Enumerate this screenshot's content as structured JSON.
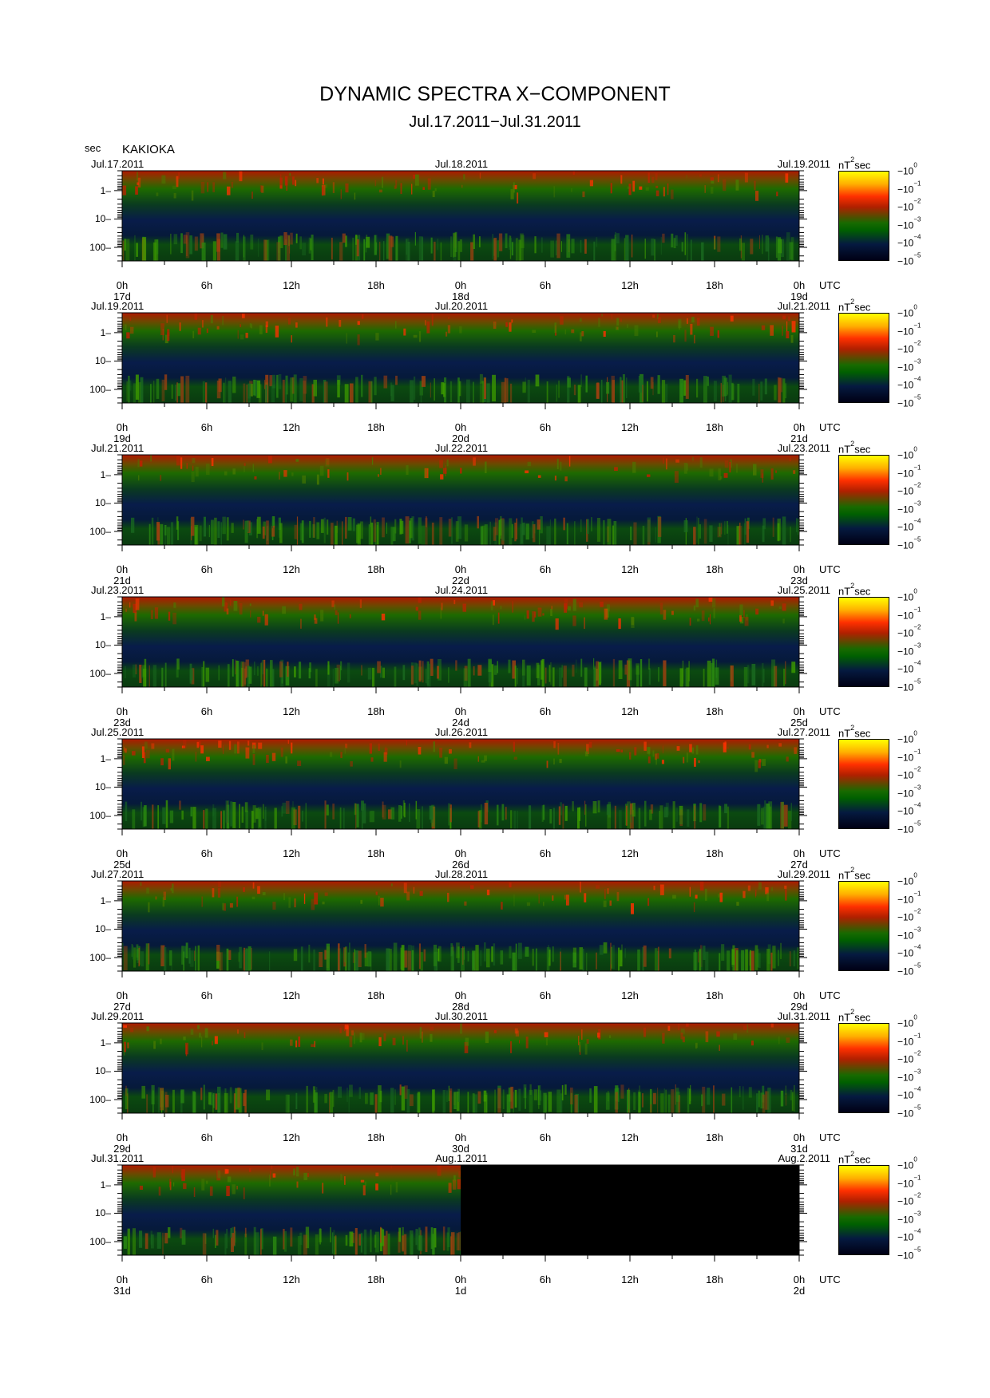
{
  "title": "DYNAMIC SPECTRA X−COMPONENT",
  "subtitle": "Jul.17.2011−Jul.31.2011",
  "y_unit_label": "sec",
  "station": "KAKIOKA",
  "colorbar": {
    "unit": "nT",
    "unit_exp": "2",
    "unit_suffix": "sec",
    "labels": [
      "−10",
      "−10",
      "−10",
      "−10",
      "−10",
      "−10"
    ],
    "exponents": [
      "0",
      "−1",
      "−2",
      "−3",
      "−4",
      "−5"
    ],
    "colors": [
      "#ffff00",
      "#ff3000",
      "#006000",
      "#000014"
    ]
  },
  "chart_data": {
    "type": "heatmap",
    "description_axes": {
      "x_ticks": [
        "0h",
        "6h",
        "12h",
        "18h",
        "0h",
        "6h",
        "12h",
        "18h",
        "0h"
      ],
      "y_ticks": [
        "1",
        "10",
        "100"
      ],
      "utc_label": "UTC"
    },
    "panels": [
      {
        "date_left": "Jul.17.2011",
        "date_mid": "Jul.18.2011",
        "date_right": "Jul.19.2011",
        "day_labels": [
          "17d",
          "18d",
          "19d"
        ]
      },
      {
        "date_left": "Jul.19.2011",
        "date_mid": "Jul.20.2011",
        "date_right": "Jul.21.2011",
        "day_labels": [
          "19d",
          "20d",
          "21d"
        ]
      },
      {
        "date_left": "Jul.21.2011",
        "date_mid": "Jul.22.2011",
        "date_right": "Jul.23.2011",
        "day_labels": [
          "21d",
          "22d",
          "23d"
        ]
      },
      {
        "date_left": "Jul.23.2011",
        "date_mid": "Jul.24.2011",
        "date_right": "Jul.25.2011",
        "day_labels": [
          "23d",
          "24d",
          "25d"
        ]
      },
      {
        "date_left": "Jul.25.2011",
        "date_mid": "Jul.26.2011",
        "date_right": "Jul.27.2011",
        "day_labels": [
          "25d",
          "26d",
          "27d"
        ]
      },
      {
        "date_left": "Jul.27.2011",
        "date_mid": "Jul.28.2011",
        "date_right": "Jul.29.2011",
        "day_labels": [
          "27d",
          "28d",
          "29d"
        ]
      },
      {
        "date_left": "Jul.29.2011",
        "date_mid": "Jul.30.2011",
        "date_right": "Jul.31.2011",
        "day_labels": [
          "29d",
          "30d",
          "31d"
        ]
      },
      {
        "date_left": "Jul.31.2011",
        "date_mid": "Aug.1.2011",
        "date_right": "Aug.2.2011",
        "day_labels": [
          "31d",
          "1d",
          "2d"
        ],
        "no_data_from_hour": 24
      }
    ],
    "y_range_sec": [
      0.2,
      300
    ],
    "x_range_hours": [
      0,
      48
    ],
    "colorbar_range": [
      "10^0",
      "10^-5"
    ]
  }
}
